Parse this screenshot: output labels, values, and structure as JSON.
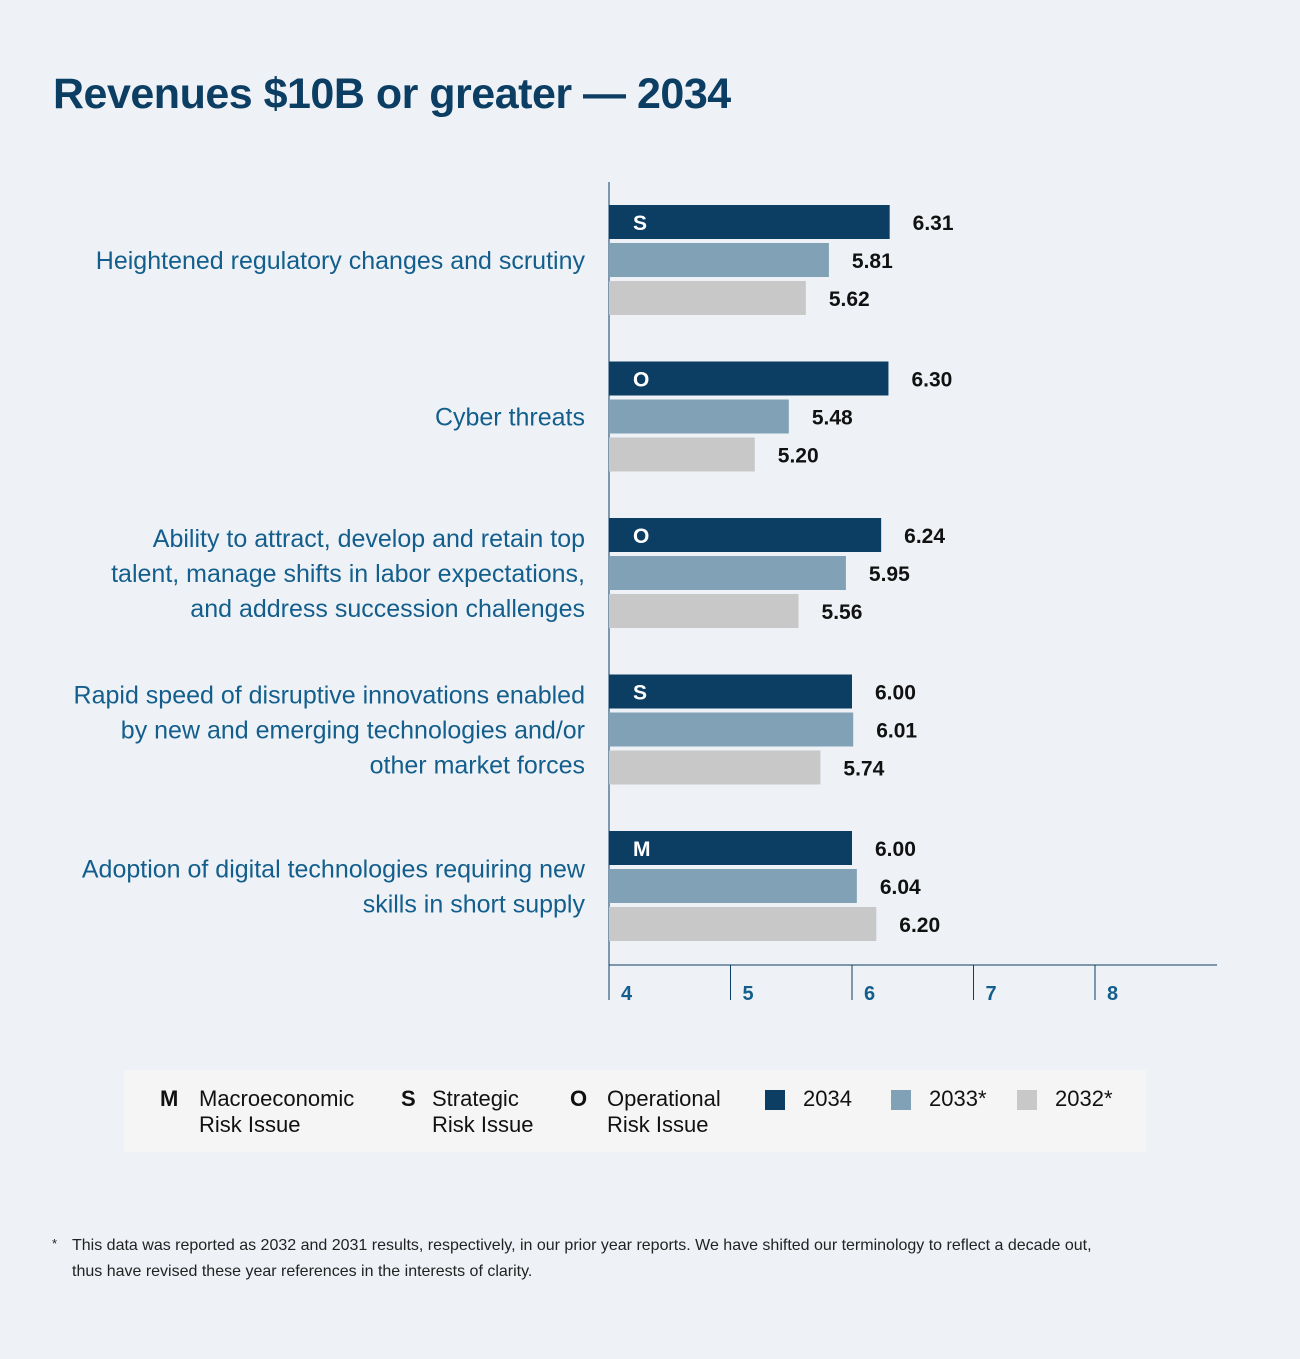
{
  "chart_data": {
    "type": "bar",
    "orientation": "horizontal",
    "title": "Revenues $10B or greater — 2034",
    "categories": [
      "Heightened regulatory changes and scrutiny",
      "Cyber threats",
      "Ability to attract, develop and retain top talent, manage shifts in labor expectations, and address succession challenges",
      "Rapid speed of disruptive innovations enabled by new and emerging technologies and/or other market forces",
      "Adoption of digital technologies requiring new skills in short supply"
    ],
    "category_lines": [
      [
        "Heightened regulatory changes and scrutiny"
      ],
      [
        "Cyber threats"
      ],
      [
        "Ability to attract, develop and retain top",
        "talent, manage shifts in labor expectations,",
        "and address succession challenges"
      ],
      [
        "Rapid speed of disruptive innovations enabled",
        "by new and emerging technologies and/or",
        "other market forces"
      ],
      [
        "Adoption of digital technologies requiring new",
        "skills in short supply"
      ]
    ],
    "risk_types": [
      "S",
      "O",
      "O",
      "S",
      "M"
    ],
    "series": [
      {
        "name": "2034",
        "color": "#0c3d63",
        "values": [
          6.31,
          6.3,
          6.24,
          6.0,
          6.0
        ],
        "labels": [
          "6.31",
          "6.30",
          "6.24",
          "6.00",
          "6.00"
        ]
      },
      {
        "name": "2033*",
        "color": "#81a2b6",
        "values": [
          5.81,
          5.48,
          5.95,
          6.01,
          6.04
        ],
        "labels": [
          "5.81",
          "5.48",
          "5.95",
          "6.01",
          "6.04"
        ]
      },
      {
        "name": "2032*",
        "color": "#c8c8c8",
        "values": [
          5.62,
          5.2,
          5.56,
          5.74,
          6.2
        ],
        "labels": [
          "5.62",
          "5.20",
          "5.56",
          "5.74",
          "6.20"
        ]
      }
    ],
    "xlim": [
      4,
      9
    ],
    "xticks": [
      "4",
      "5",
      "6",
      "7",
      "8"
    ],
    "grid": false,
    "legend_position": "bottom"
  },
  "legend": {
    "types": [
      {
        "code": "M",
        "line1": "Macroeconomic",
        "line2": "Risk Issue"
      },
      {
        "code": "S",
        "line1": "Strategic",
        "line2": "Risk Issue"
      },
      {
        "code": "O",
        "line1": "Operational",
        "line2": "Risk Issue"
      }
    ],
    "series": [
      {
        "label": "2034",
        "color": "#0c3d63"
      },
      {
        "label": "2033*",
        "color": "#81a2b6"
      },
      {
        "label": "2032*",
        "color": "#c8c8c8"
      }
    ]
  },
  "footnote": {
    "mark": "*",
    "line1": "This data was reported as 2032 and 2031 results, respectively, in our prior year reports. We have shifted our terminology to reflect a decade out,",
    "line2": "thus have revised these year references in the interests of clarity."
  }
}
